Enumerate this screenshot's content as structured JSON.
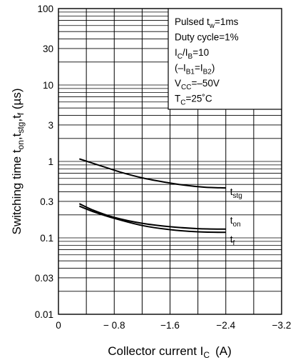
{
  "chart_data": {
    "type": "line",
    "xlabel": {
      "main": "Collector current  I",
      "sub": "C",
      "unit": "(A)"
    },
    "ylabel": {
      "prefix": "Switching time  t",
      "parts": [
        {
          "sub": "on"
        },
        {
          "text": ",t"
        },
        {
          "sub": "stg"
        },
        {
          "text": ",t"
        },
        {
          "sub": "f"
        },
        {
          "text": "  (µs)"
        }
      ]
    },
    "x_scale": "linear",
    "y_scale": "log",
    "xlim": [
      0,
      -3.2
    ],
    "ylim": [
      0.01,
      100
    ],
    "x_ticks": [
      {
        "value": 0,
        "label": "0"
      },
      {
        "value": -0.8,
        "label": "− 0.8"
      },
      {
        "value": -1.6,
        "label": "−1.6"
      },
      {
        "value": -2.4,
        "label": "−2.4"
      },
      {
        "value": -3.2,
        "label": "−3.2"
      }
    ],
    "y_ticks": [
      {
        "value": 0.01,
        "label": "0.01"
      },
      {
        "value": 0.03,
        "label": "0.03"
      },
      {
        "value": 0.1,
        "label": "0.1"
      },
      {
        "value": 0.3,
        "label": "0.3"
      },
      {
        "value": 1,
        "label": "1"
      },
      {
        "value": 3,
        "label": "3"
      },
      {
        "value": 10,
        "label": "10"
      },
      {
        "value": 30,
        "label": "30"
      },
      {
        "value": 100,
        "label": "100"
      }
    ],
    "grid": true,
    "legend_position": "top-right",
    "conditions": [
      [
        {
          "t": "Pulsed t"
        },
        {
          "sub": "w"
        },
        {
          "t": "=1ms"
        }
      ],
      [
        {
          "t": "Duty cycle=1%"
        }
      ],
      [
        {
          "t": "I"
        },
        {
          "sub": "C"
        },
        {
          "t": "/I"
        },
        {
          "sub": "B"
        },
        {
          "t": "=10"
        }
      ],
      [
        {
          "t": "(–I"
        },
        {
          "sub": "B1"
        },
        {
          "t": "=I"
        },
        {
          "sub": "B2"
        },
        {
          "t": ")"
        }
      ],
      [
        {
          "t": "V"
        },
        {
          "sub": "CC"
        },
        {
          "t": "=–50V"
        }
      ],
      [
        {
          "t": "T"
        },
        {
          "sub": "C"
        },
        {
          "t": "=25˚C"
        }
      ]
    ],
    "series": [
      {
        "name": "t",
        "sub": "stg",
        "x": [
          -0.3,
          -0.6,
          -0.9,
          -1.2,
          -1.5,
          -1.8,
          -2.1,
          -2.4
        ],
        "y": [
          1.08,
          0.88,
          0.72,
          0.61,
          0.54,
          0.49,
          0.46,
          0.45
        ]
      },
      {
        "name": "t",
        "sub": "on",
        "x": [
          -0.3,
          -0.5,
          -0.8,
          -1.2,
          -1.6,
          -2.0,
          -2.4
        ],
        "y": [
          0.28,
          0.23,
          0.185,
          0.155,
          0.14,
          0.132,
          0.13
        ]
      },
      {
        "name": "t",
        "sub": "f",
        "x": [
          -0.3,
          -0.5,
          -0.8,
          -1.2,
          -1.6,
          -2.0,
          -2.4
        ],
        "y": [
          0.26,
          0.22,
          0.18,
          0.145,
          0.128,
          0.12,
          0.118
        ]
      }
    ]
  }
}
